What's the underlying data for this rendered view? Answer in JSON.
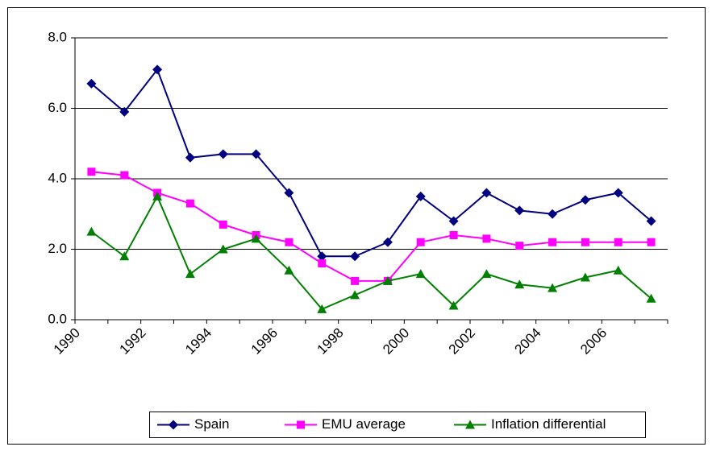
{
  "chart_data": {
    "type": "line",
    "categories": [
      "1990",
      null,
      "1992",
      null,
      "1994",
      null,
      "1996",
      null,
      "1998",
      null,
      "2000",
      null,
      "2002",
      null,
      "2004",
      null,
      "2006",
      null
    ],
    "series": [
      {
        "name": "Spain",
        "color": "#000080",
        "marker": "diamond",
        "values": [
          6.7,
          5.9,
          7.1,
          4.6,
          4.7,
          4.7,
          3.6,
          1.8,
          1.8,
          2.2,
          3.5,
          2.8,
          3.6,
          3.1,
          3.0,
          3.4,
          3.6,
          2.8
        ]
      },
      {
        "name": "EMU average",
        "color": "#ff00ff",
        "marker": "square",
        "values": [
          4.2,
          4.1,
          3.6,
          3.3,
          2.7,
          2.4,
          2.2,
          1.6,
          1.1,
          1.1,
          2.2,
          2.4,
          2.3,
          2.1,
          2.2,
          2.2,
          2.2,
          2.2
        ]
      },
      {
        "name": "Inflation differential",
        "color": "#008000",
        "marker": "triangle",
        "values": [
          2.5,
          1.8,
          3.5,
          1.3,
          2.0,
          2.3,
          1.4,
          0.3,
          0.7,
          1.1,
          1.3,
          0.4,
          1.3,
          1.0,
          0.9,
          1.2,
          1.4,
          0.6
        ]
      }
    ],
    "ylim": [
      0,
      8
    ],
    "yticks": [
      {
        "value": 0,
        "label": "0.0"
      },
      {
        "value": 2,
        "label": "2.0"
      },
      {
        "value": 4,
        "label": "4.0"
      },
      {
        "value": 6,
        "label": "6.0"
      },
      {
        "value": 8,
        "label": "8.0"
      }
    ],
    "grid": true,
    "legend": "bottom"
  }
}
